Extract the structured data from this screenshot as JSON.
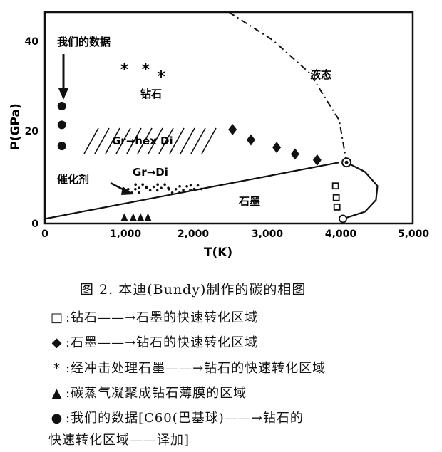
{
  "chart_data": {
    "type": "scatter",
    "xlabel": "T(K)",
    "ylabel": "P(GPa)",
    "xlim": [
      0,
      5000
    ],
    "ylim": [
      0,
      45
    ],
    "xticks": [
      "0",
      "1,000",
      "2,000",
      "3,000",
      "4,000",
      "5,000"
    ],
    "yticks": [
      "0",
      "20",
      "40"
    ],
    "region_labels": {
      "our_data": "我们的数据",
      "diamond": "钻石",
      "liquid": "液态",
      "graphite": "石墨",
      "catalyst": "催化剂",
      "gr_hex_di": "Gr→hex Di",
      "gr_di": "Gr→Di"
    },
    "series": {
      "graphite_diamond_boundary": [
        [
          0,
          1
        ],
        [
          4000,
          13
        ]
      ],
      "triple_point": [
        4100,
        13
      ],
      "melting_curve": [
        [
          4100,
          13
        ],
        [
          4350,
          11
        ],
        [
          4520,
          8
        ],
        [
          4500,
          5
        ],
        [
          4350,
          2.5
        ],
        [
          4050,
          1
        ]
      ],
      "liquid_diamond_boundary": [
        [
          2500,
          45
        ],
        [
          3100,
          39
        ],
        [
          3600,
          32
        ],
        [
          4000,
          22
        ],
        [
          4100,
          13
        ]
      ],
      "square_points": [
        [
          3950,
          8
        ],
        [
          3960,
          5.5
        ],
        [
          3970,
          3.5
        ]
      ],
      "diamond_points": [
        [
          2550,
          20
        ],
        [
          2800,
          17.8
        ],
        [
          3150,
          16.2
        ],
        [
          3400,
          14.8
        ],
        [
          3700,
          13.5
        ]
      ],
      "asterisk_points": [
        [
          1080,
          33
        ],
        [
          1370,
          33
        ],
        [
          1580,
          31.5
        ]
      ],
      "triangle_points": [
        [
          1080,
          1
        ],
        [
          1200,
          1
        ],
        [
          1300,
          1
        ],
        [
          1400,
          1
        ]
      ],
      "circle_points": [
        [
          230,
          25
        ],
        [
          230,
          21
        ],
        [
          230,
          16.5
        ]
      ],
      "catalyst_dots": [
        [
          1200,
          7
        ],
        [
          1300,
          8
        ],
        [
          1450,
          7.5
        ],
        [
          1600,
          8
        ],
        [
          1750,
          7
        ],
        [
          1900,
          7.6
        ],
        [
          2050,
          7.8
        ]
      ],
      "open_circle": [
        4050,
        1
      ]
    }
  },
  "caption": "图 2. 本迪(Bundy)制作的碳的相图",
  "legend": [
    {
      "icon": "open-square",
      "symbol": "□",
      "text": ":钻石——→石墨的快速转化区域"
    },
    {
      "icon": "filled-diamond",
      "symbol": "◆",
      "text": ":石墨——→钻石的快速转化区域"
    },
    {
      "icon": "asterisk",
      "symbol": "*",
      "text": ":经冲击处理石墨——→钻石的快速转化区域"
    },
    {
      "icon": "filled-triangle",
      "symbol": "▲",
      "text": ":碳蒸气凝聚成钻石薄膜的区域"
    },
    {
      "icon": "filled-circle",
      "symbol": "●",
      "text": ":我们的数据[C60(巴基球)——→钻石的"
    },
    {
      "icon": "",
      "symbol": "",
      "text": "快速转化区域——译加]"
    }
  ]
}
